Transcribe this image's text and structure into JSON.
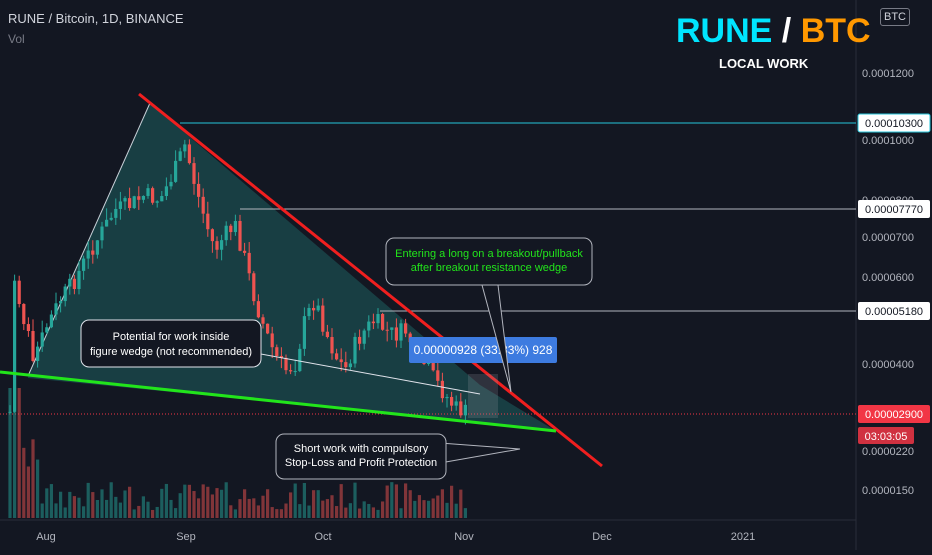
{
  "header": {
    "symbol_line": "RUNE / Bitcoin, 1D, BINANCE",
    "volume_label": "Vol"
  },
  "branding": {
    "base": "RUNE",
    "separator": "/",
    "quote": "BTC",
    "subtitle": "LOCAL WORK",
    "currency_tag": "BTC"
  },
  "colors": {
    "background": "#131722",
    "up_candle": "#26a69a",
    "down_candle": "#ef5350",
    "wedge_fill": "#26a69a",
    "resistance_line": "#f01f1f",
    "support_line": "#22e51b",
    "level_line": "#b2b5be",
    "top_level_line": "#26c6da",
    "measure_label": "#3d7be0",
    "price_tag": "#f23645"
  },
  "chart_data": {
    "type": "candlestick",
    "x_axis": {
      "tick_labels": [
        "Aug",
        "Sep",
        "Oct",
        "Nov",
        "Dec",
        "2021"
      ]
    },
    "y_axis": {
      "scale": "log",
      "tick_labels": [
        "0.0001200",
        "0.0001000",
        "0.0000800",
        "0.0000700",
        "0.0000600",
        "0.0000400",
        "0.0000220",
        "0.0000150"
      ],
      "range": [
        1.15e-05,
        0.000145
      ]
    },
    "price_levels": [
      {
        "value": "0.00010300",
        "style": "cyan"
      },
      {
        "value": "0.00007770",
        "style": "light"
      },
      {
        "value": "0.00005180",
        "style": "light"
      }
    ],
    "current_price": {
      "value": "0.00002900",
      "countdown": "03:03:05"
    },
    "measure_label": "0.00000928 (33.33%) 928",
    "annotations": [
      {
        "id": "inside",
        "text": [
          "Potential for work inside",
          "figure wedge (not recommended)"
        ]
      },
      {
        "id": "breakout",
        "text": [
          "Entering a long on a breakout/pullback",
          "after breakout resistance wedge"
        ]
      },
      {
        "id": "short",
        "text": [
          "Short work with compulsory",
          "Stop-Loss and Profit Protection"
        ]
      }
    ],
    "lines": [
      {
        "name": "resistance",
        "color": "red"
      },
      {
        "name": "support",
        "color": "green"
      }
    ],
    "volume": "shown"
  }
}
